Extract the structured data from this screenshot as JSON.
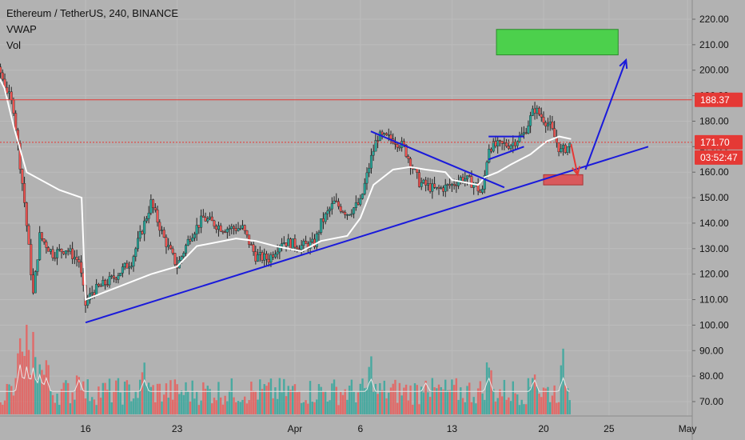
{
  "header": {
    "symbol_line": "Ethereum / TetherUS, 240, BINANCE",
    "indicators": [
      "VWAP",
      "Vol"
    ]
  },
  "colors": {
    "background": "#b2b2b2",
    "grid": "#bcbcbc",
    "up": "#26a69a",
    "down": "#ef5350",
    "vwap": "#ffffff",
    "trendline": "#1a1adb",
    "target_box": "#4cd04c",
    "stop_box": "#d9595c",
    "horizontal_line": "#e53935",
    "drop_arrow": "#e53935"
  },
  "chart_data": {
    "type": "candlestick",
    "title": "Ethereum / TetherUS, 240, BINANCE",
    "yaxis": {
      "ticks": [
        "220.00",
        "210.00",
        "200.00",
        "190.00",
        "180.00",
        "170.00",
        "160.00",
        "150.00",
        "140.00",
        "130.00",
        "120.00",
        "110.00",
        "100.00",
        "90.00",
        "80.00",
        "70.00"
      ],
      "range": [
        65,
        225
      ]
    },
    "xaxis": {
      "ticks": [
        {
          "label": "16",
          "day": 16
        },
        {
          "label": "23",
          "day": 23
        },
        {
          "label": "Apr",
          "day": 32
        },
        {
          "label": "6",
          "day": 37
        },
        {
          "label": "13",
          "day": 44
        },
        {
          "label": "20",
          "day": 51
        },
        {
          "label": "25",
          "day": 56
        },
        {
          "label": "May",
          "day": 62
        }
      ],
      "range_days": [
        6,
        64.5
      ],
      "note": "day numbers count from 1 March"
    },
    "price_path": [
      [
        6.0,
        200
      ],
      [
        8.0,
        203
      ],
      [
        9.5,
        199
      ],
      [
        10.5,
        185
      ],
      [
        11.3,
        150
      ],
      [
        12.0,
        112
      ],
      [
        12.5,
        135
      ],
      [
        13.5,
        128
      ],
      [
        14.5,
        130
      ],
      [
        15.5,
        125
      ],
      [
        16.0,
        108
      ],
      [
        16.5,
        113
      ],
      [
        18.0,
        118
      ],
      [
        19.5,
        125
      ],
      [
        20.5,
        140
      ],
      [
        21.0,
        148
      ],
      [
        22.0,
        134
      ],
      [
        23.0,
        123
      ],
      [
        24.0,
        135
      ],
      [
        25.0,
        142
      ],
      [
        26.5,
        138
      ],
      [
        28.0,
        138
      ],
      [
        29.0,
        127
      ],
      [
        30.0,
        126
      ],
      [
        31.0,
        133
      ],
      [
        32.5,
        131
      ],
      [
        33.5,
        132
      ],
      [
        34.0,
        140
      ],
      [
        35.0,
        148
      ],
      [
        36.0,
        144
      ],
      [
        37.0,
        148
      ],
      [
        37.8,
        165
      ],
      [
        38.3,
        174
      ],
      [
        39.5,
        173
      ],
      [
        40.3,
        170
      ],
      [
        41.5,
        156
      ],
      [
        42.8,
        153
      ],
      [
        44.0,
        155
      ],
      [
        44.8,
        158
      ],
      [
        45.8,
        155
      ],
      [
        46.3,
        151
      ],
      [
        46.8,
        170
      ],
      [
        48.5,
        171
      ],
      [
        49.5,
        175
      ],
      [
        50.3,
        185
      ],
      [
        51.5,
        178
      ],
      [
        52.3,
        168
      ],
      [
        53.1,
        171
      ]
    ],
    "series": [
      {
        "name": "VWAP",
        "type": "line",
        "color": "#ffffff",
        "points": [
          [
            6.0,
            203
          ],
          [
            9.0,
            201
          ],
          [
            9.8,
            193
          ],
          [
            10.5,
            178
          ],
          [
            11.5,
            160
          ],
          [
            14.0,
            153
          ],
          [
            15.7,
            150
          ],
          [
            16.0,
            110
          ],
          [
            18.0,
            114
          ],
          [
            21.0,
            120
          ],
          [
            23.0,
            123
          ],
          [
            24.5,
            131
          ],
          [
            27.5,
            134
          ],
          [
            29.0,
            133
          ],
          [
            30.5,
            131
          ],
          [
            32.5,
            129
          ],
          [
            34.0,
            133
          ],
          [
            36.0,
            135
          ],
          [
            37.0,
            142
          ],
          [
            38.0,
            155
          ],
          [
            39.5,
            161
          ],
          [
            40.8,
            162
          ],
          [
            42.0,
            161
          ],
          [
            43.5,
            160
          ],
          [
            44.0,
            157
          ],
          [
            46.0,
            155
          ],
          [
            46.5,
            158
          ],
          [
            47.5,
            160
          ],
          [
            48.5,
            163
          ],
          [
            50.0,
            167
          ],
          [
            51.2,
            172
          ],
          [
            52.2,
            174
          ],
          [
            53.1,
            173
          ]
        ]
      }
    ],
    "horizontal_levels": [
      {
        "value": 188.37,
        "label": "188.37",
        "style": "solid"
      },
      {
        "value": 171.7,
        "label": "171.70",
        "style": "dotted",
        "countdown": "03:52:47"
      }
    ],
    "drawings": {
      "ascending_trendline": [
        [
          16.0,
          101
        ],
        [
          59.0,
          170
        ]
      ],
      "descending_trendline": [
        [
          37.8,
          176
        ],
        [
          48.0,
          154
        ]
      ],
      "flag_top": [
        [
          46.8,
          174
        ],
        [
          49.5,
          174
        ]
      ],
      "flag_bottom": [
        [
          46.8,
          165
        ],
        [
          49.5,
          170
        ]
      ],
      "target_box": {
        "day_from": 47.4,
        "day_to": 56.7,
        "price_from": 206,
        "price_to": 216
      },
      "stop_box": {
        "day_from": 51.0,
        "day_to": 54.0,
        "price_from": 155,
        "price_to": 159
      },
      "drop_arrow": [
        [
          53.1,
          171
        ],
        [
          53.6,
          159
        ]
      ],
      "rise_arrow": [
        [
          54.2,
          161
        ],
        [
          57.3,
          204
        ]
      ]
    },
    "volume": {
      "max_bar_price": 91,
      "base_price": 65,
      "spikes": [
        [
          11.0,
          91
        ],
        [
          11.5,
          89
        ],
        [
          12.0,
          88
        ],
        [
          12.5,
          81
        ],
        [
          13.0,
          78
        ],
        [
          15.5,
          76
        ],
        [
          20.5,
          76
        ],
        [
          37.8,
          78
        ],
        [
          42.0,
          73
        ],
        [
          46.8,
          79
        ],
        [
          50.3,
          77
        ],
        [
          52.5,
          78
        ]
      ]
    }
  }
}
